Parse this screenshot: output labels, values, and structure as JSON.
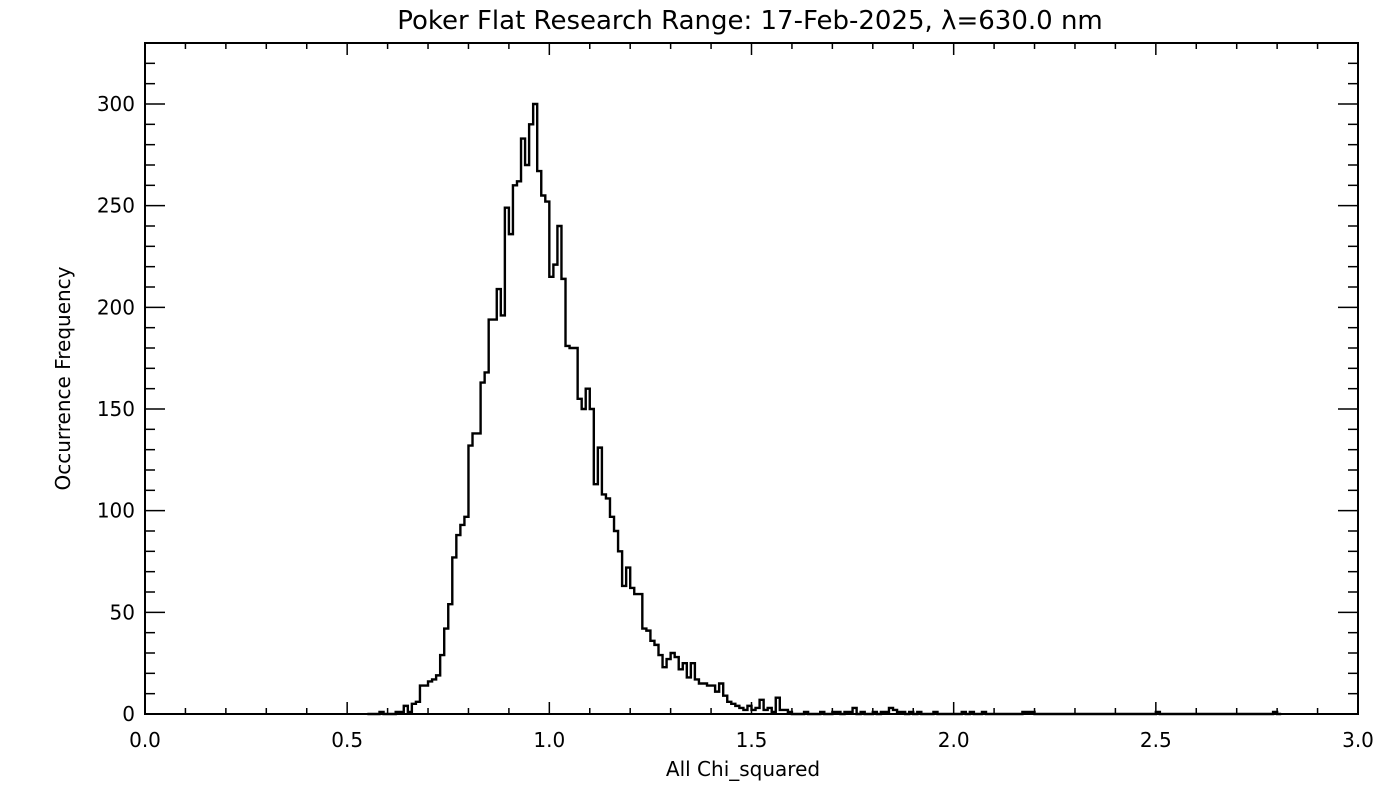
{
  "chart_data": {
    "type": "histogram",
    "title": "Poker Flat Research Range: 17-Feb-2025, λ=630.0 nm",
    "xlabel": "All Chi_squared",
    "ylabel": "Occurrence Frequency",
    "xlim": [
      0.0,
      3.0
    ],
    "ylim": [
      0,
      330
    ],
    "x_ticks": [
      0.0,
      0.5,
      1.0,
      1.5,
      2.0,
      2.5,
      3.0
    ],
    "x_tick_labels": [
      "0.0",
      "0.5",
      "1.0",
      "1.5",
      "2.0",
      "2.5",
      "3.0"
    ],
    "y_ticks": [
      0,
      50,
      100,
      150,
      200,
      250,
      300
    ],
    "y_tick_labels": [
      "0",
      "50",
      "100",
      "150",
      "200",
      "250",
      "300"
    ],
    "grid": false,
    "line_color": "#000000",
    "bin_width": 0.01,
    "bin_start": 0.55,
    "counts": [
      0,
      0,
      0,
      1,
      0,
      0,
      0,
      1,
      1,
      4,
      1,
      5,
      6,
      14,
      14,
      16,
      17,
      19,
      29,
      42,
      54,
      77,
      88,
      93,
      97,
      132,
      138,
      138,
      163,
      168,
      194,
      194,
      209,
      196,
      249,
      236,
      260,
      262,
      283,
      270,
      290,
      300,
      267,
      255,
      252,
      215,
      221,
      240,
      214,
      181,
      180,
      180,
      155,
      150,
      160,
      150,
      113,
      131,
      108,
      106,
      97,
      90,
      80,
      63,
      72,
      62,
      59,
      59,
      42,
      41,
      36,
      34,
      29,
      23,
      27,
      30,
      28,
      22,
      25,
      18,
      25,
      17,
      15,
      15,
      14,
      14,
      11,
      15,
      9,
      6,
      5,
      4,
      3,
      2,
      4,
      2,
      3,
      7,
      2,
      3,
      1,
      8,
      2,
      2,
      1,
      0,
      0,
      0,
      1,
      0,
      0,
      0,
      1,
      0,
      0,
      1,
      1,
      0,
      1,
      1,
      3,
      0,
      1,
      0,
      0,
      1,
      0,
      1,
      1,
      3,
      2,
      1,
      1,
      0,
      1,
      0,
      1,
      0,
      0,
      0,
      1,
      0,
      0,
      0,
      0,
      0,
      0,
      1,
      0,
      1,
      0,
      0,
      1,
      0,
      0,
      0,
      0,
      0,
      0,
      0,
      0,
      0,
      1,
      1,
      1,
      0,
      0,
      0,
      0,
      0,
      0,
      0,
      0,
      0,
      0,
      0,
      0,
      0,
      0,
      0,
      0,
      0,
      0,
      0,
      0,
      0,
      0,
      0,
      0,
      0,
      0,
      0,
      0,
      0,
      0,
      1,
      0,
      0,
      0,
      0,
      0,
      0,
      0,
      0,
      0,
      0,
      0,
      0,
      0,
      0,
      0,
      0,
      0,
      0,
      0,
      0,
      0,
      0,
      0,
      0,
      0,
      0,
      0,
      0,
      1,
      0
    ]
  }
}
